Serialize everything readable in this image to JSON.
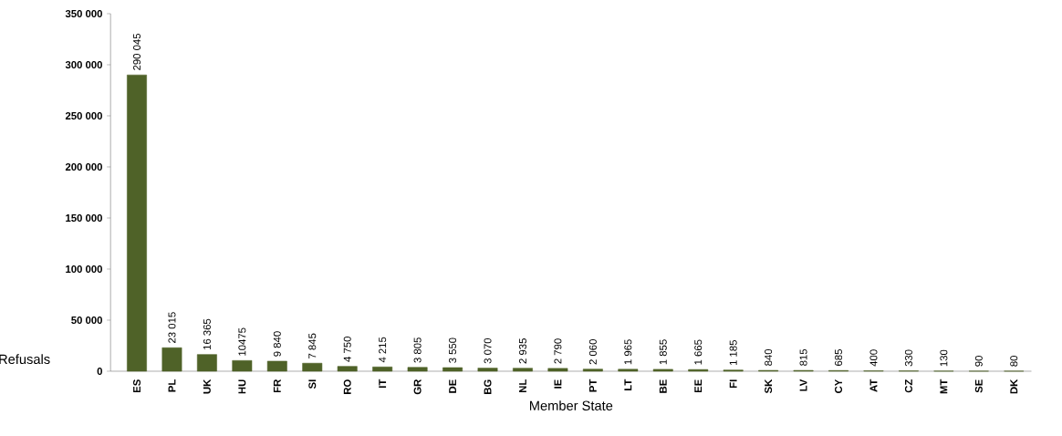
{
  "chart_data": {
    "type": "bar",
    "xlabel": "Member State",
    "ylabel": "Refusals",
    "color": "#4f6228",
    "categories": [
      "ES",
      "PL",
      "UK",
      "HU",
      "FR",
      "SI",
      "RO",
      "IT",
      "GR",
      "DE",
      "BG",
      "NL",
      "IE",
      "PT",
      "LT",
      "BE",
      "EE",
      "FI",
      "SK",
      "LV",
      "CY",
      "AT",
      "CZ",
      "MT",
      "SE",
      "DK"
    ],
    "values": [
      290045,
      23015,
      16365,
      10475,
      9840,
      7845,
      4750,
      4215,
      3805,
      3550,
      3070,
      2935,
      2790,
      2060,
      1965,
      1855,
      1665,
      1185,
      840,
      815,
      685,
      400,
      330,
      130,
      90,
      80
    ],
    "value_labels": [
      "290 045",
      "23 015",
      "16 365",
      "10475",
      "9 840",
      "7 845",
      "4 750",
      "4 215",
      "3 805",
      "3 550",
      "3 070",
      "2 935",
      "2 790",
      "2 060",
      "1 965",
      "1 855",
      "1 665",
      "1 185",
      "840",
      "815",
      "685",
      "400",
      "330",
      "130",
      "90",
      "80"
    ],
    "ylim": [
      0,
      350000
    ],
    "yticks": [
      0,
      {
        "value": 50000,
        "label": "50 000"
      },
      {
        "value": 100000,
        "label": "100 000"
      },
      {
        "value": 150000,
        "label": "150 000"
      },
      {
        "value": 200000,
        "label": "200 000"
      },
      {
        "value": 250000,
        "label": "250 000"
      },
      {
        "value": 300000,
        "label": "300 000"
      },
      {
        "value": 350000,
        "label": "350 000"
      }
    ]
  }
}
